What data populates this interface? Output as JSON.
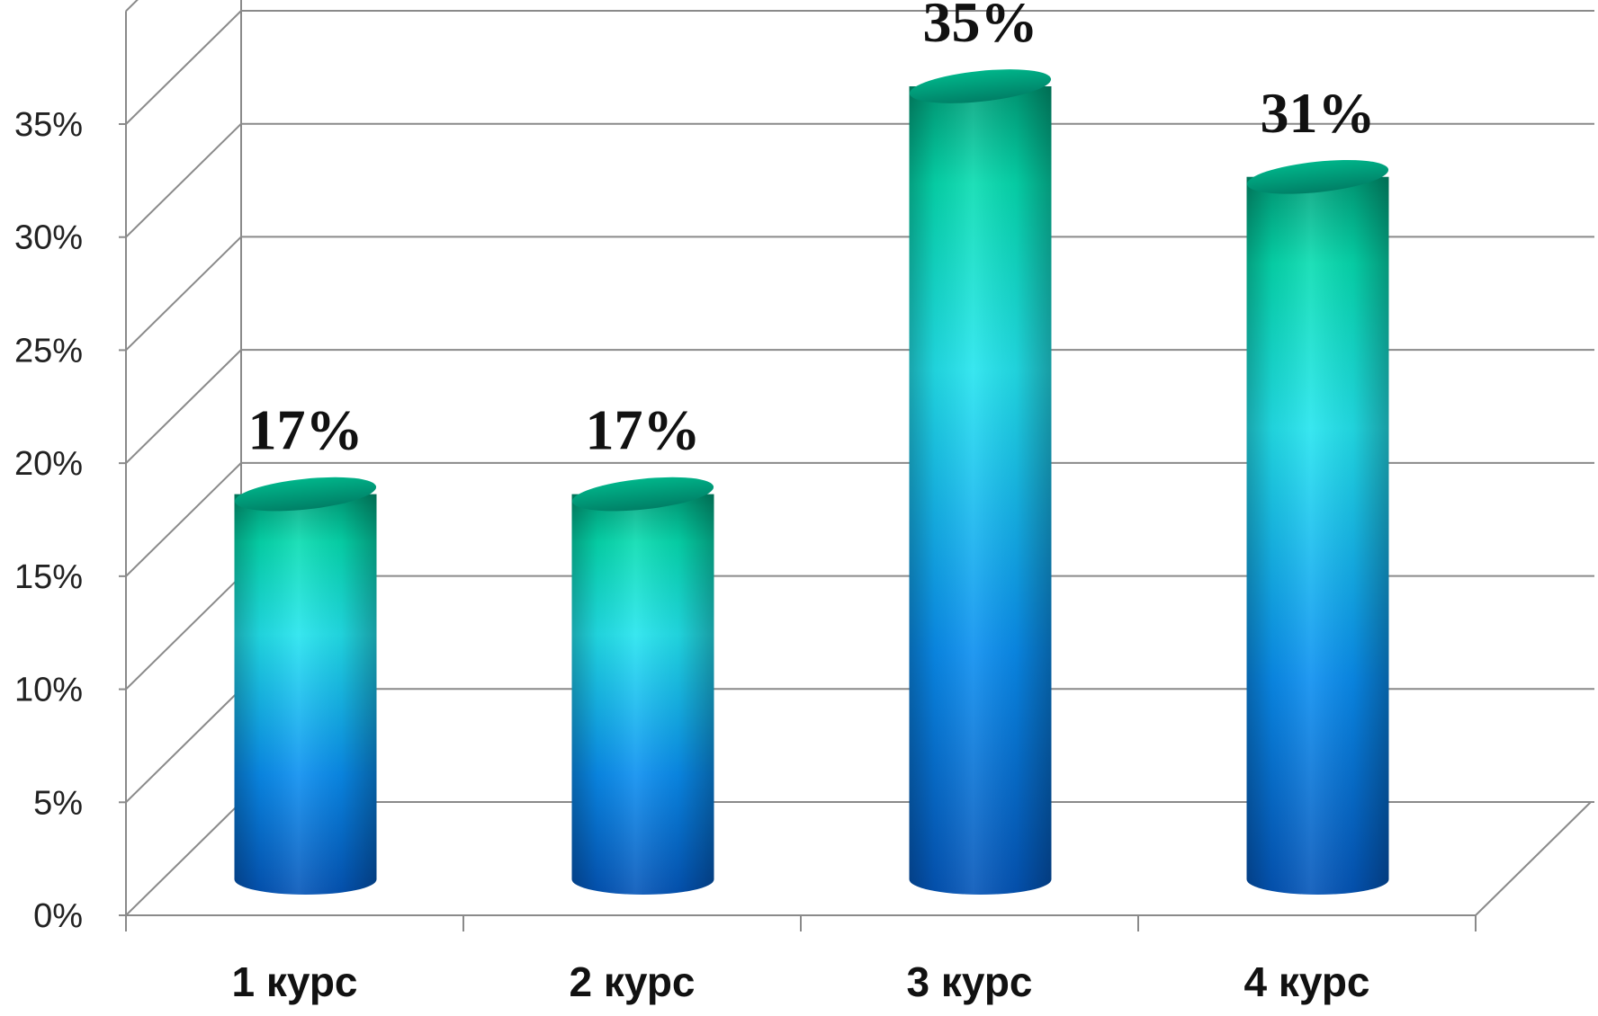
{
  "chart_data": {
    "type": "bar",
    "style": "3d-cylinder",
    "categories": [
      "1 курс",
      "2 курс",
      "3 курс",
      "4 курс"
    ],
    "values": [
      17,
      17,
      35,
      31
    ],
    "data_labels": [
      "17%",
      "17%",
      "35%",
      "31%"
    ],
    "y_ticks": [
      "0%",
      "5%",
      "10%",
      "15%",
      "20%",
      "25%",
      "30%",
      "35%"
    ],
    "ylim": [
      0,
      35
    ],
    "grid": true,
    "legend": "none",
    "title": "",
    "xlabel": "",
    "ylabel": ""
  },
  "colors": {
    "bar_top": "#00a07a",
    "bar_upper": "#06dcb0",
    "bar_mid": "#23e4ee",
    "bar_lower": "#0a8ef0",
    "bar_bottom": "#0455b8",
    "grid": "#8a8a8a"
  }
}
